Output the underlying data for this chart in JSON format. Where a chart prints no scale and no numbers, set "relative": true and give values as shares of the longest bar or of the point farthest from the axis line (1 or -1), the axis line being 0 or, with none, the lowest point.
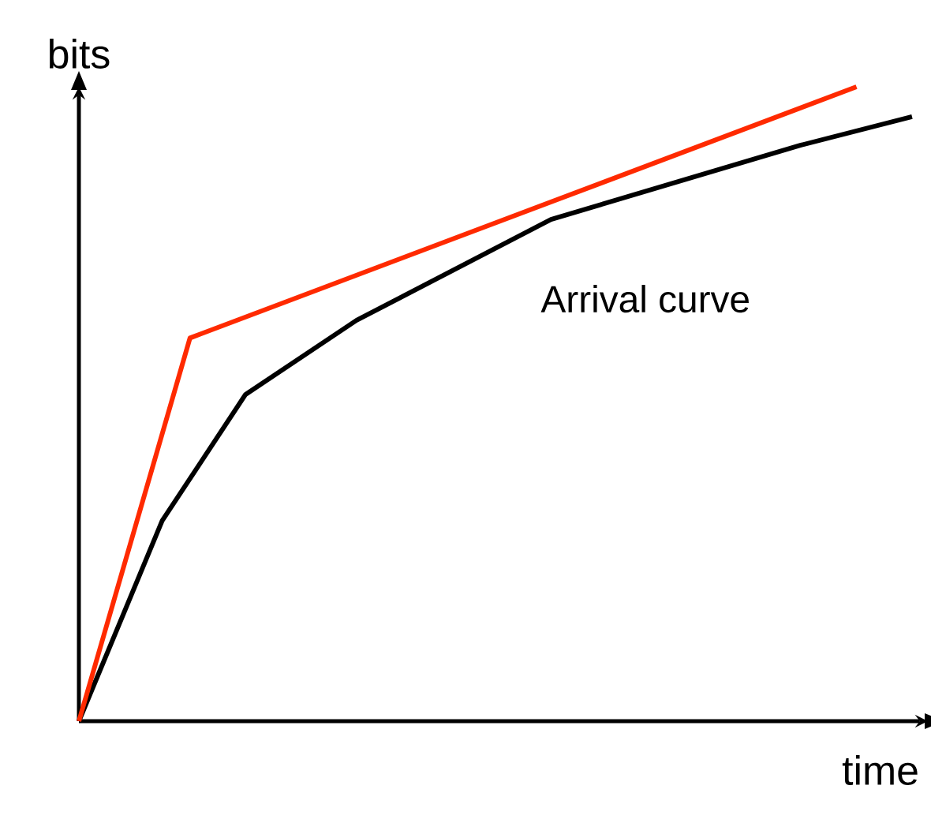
{
  "chart_data": {
    "type": "line",
    "relative": true,
    "xlabel": "time",
    "ylabel": "bits",
    "marker": "none",
    "line_style": "solid",
    "categories": [
      null,
      null,
      null,
      null,
      null,
      null,
      null,
      null,
      null,
      null,
      null,
      null,
      null,
      null,
      null,
      null,
      null,
      null,
      null,
      null,
      null,
      null,
      null,
      null,
      null,
      null,
      null,
      null,
      null,
      null,
      null
    ],
    "series": [
      {
        "name": "Arrival curve",
        "color": "#000000",
        "values": [
          0,
          null,
          null,
          0.316,
          null,
          null,
          0.515,
          null,
          null,
          null,
          0.632,
          null,
          null,
          null,
          null,
          null,
          null,
          0.791,
          null,
          null,
          null,
          null,
          null,
          null,
          null,
          null,
          0.908,
          null,
          null,
          null,
          0.953
        ]
      },
      {
        "color": "#ff2a00",
        "values": [
          0,
          null,
          null,
          null,
          0.604,
          null,
          null,
          null,
          null,
          null,
          null,
          null,
          null,
          null,
          null,
          null,
          null,
          null,
          null,
          null,
          null,
          null,
          null,
          null,
          null,
          null,
          null,
          null,
          1,
          null,
          null
        ]
      }
    ]
  }
}
